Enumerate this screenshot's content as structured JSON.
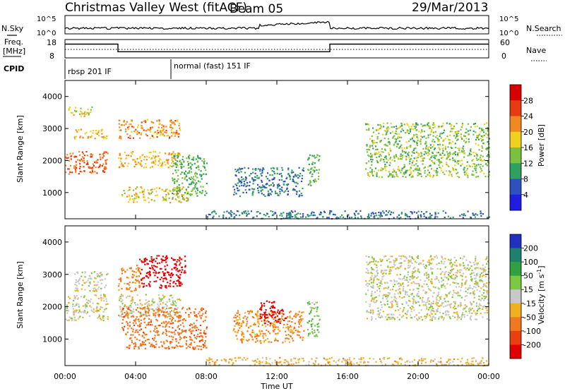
{
  "header": {
    "title": "Christmas Valley West (fitACF)",
    "beam": "Beam 05",
    "date": "29/Mar/2013"
  },
  "noise_panel": {
    "left_label": "N.Sky",
    "right_label": "N.Search",
    "left_ticks": [
      "10^5",
      "10^0"
    ],
    "right_ticks": [
      "10^5",
      "10^0"
    ]
  },
  "freq_panel": {
    "left_label_line1": "Freq.",
    "left_label_line2": "[MHz]",
    "right_label": "Nave",
    "left_ticks": [
      "18",
      "8"
    ],
    "right_ticks": [
      "60",
      "0"
    ],
    "freq_levels_mhz": [
      {
        "start_hour": 0,
        "end_hour": 3,
        "value": 15
      },
      {
        "start_hour": 3,
        "end_hour": 15,
        "value": 10
      },
      {
        "start_hour": 15,
        "end_hour": 24,
        "value": 15
      }
    ]
  },
  "cpid": {
    "label": "CPID",
    "modes": [
      {
        "start_hour": 0,
        "label": "rbsp 201 IF"
      },
      {
        "start_hour": 6,
        "label": "normal (fast) 151 IF"
      }
    ]
  },
  "x_axis": {
    "label": "Time UT",
    "range_hours": [
      0,
      24
    ],
    "ticks": [
      {
        "value": 0,
        "label": "00:00"
      },
      {
        "value": 4,
        "label": "04:00"
      },
      {
        "value": 8,
        "label": "08:00"
      },
      {
        "value": 12,
        "label": "12:00"
      },
      {
        "value": 16,
        "label": "16:00"
      },
      {
        "value": 20,
        "label": "20:00"
      },
      {
        "value": 24,
        "label": "00:00"
      }
    ]
  },
  "chart_data": [
    {
      "type": "heatmap",
      "name": "power",
      "ylabel": "Slant Range [km]",
      "ylim": [
        180,
        4500
      ],
      "yticks": [
        1000,
        2000,
        3000,
        4000
      ],
      "colorbar": {
        "label": "Power [dB]",
        "ticks": [
          "4",
          "8",
          "12",
          "16",
          "20",
          "24",
          "28"
        ],
        "colors": [
          "#1e1ee0",
          "#3050c0",
          "#30a060",
          "#7cc040",
          "#f0d020",
          "#f08a20",
          "#e83a10",
          "#d80000"
        ]
      },
      "regions": [
        {
          "t0": 0.0,
          "t1": 2.4,
          "r0": 1600,
          "r1": 2300,
          "value": 24
        },
        {
          "t0": 0.5,
          "t1": 2.4,
          "r0": 2700,
          "r1": 3000,
          "value": 20
        },
        {
          "t0": 0.0,
          "t1": 1.5,
          "r0": 3400,
          "r1": 3700,
          "value": 18
        },
        {
          "t0": 3.0,
          "t1": 6.5,
          "r0": 2700,
          "r1": 3300,
          "value": 22
        },
        {
          "t0": 3.0,
          "t1": 6.5,
          "r0": 1800,
          "r1": 2300,
          "value": 20
        },
        {
          "t0": 3.2,
          "t1": 7.0,
          "r0": 700,
          "r1": 1200,
          "value": 18
        },
        {
          "t0": 6.0,
          "t1": 8.0,
          "r0": 900,
          "r1": 2200,
          "value": 12
        },
        {
          "t0": 9.5,
          "t1": 13.5,
          "r0": 900,
          "r1": 1800,
          "value": 8
        },
        {
          "t0": 13.7,
          "t1": 14.4,
          "r0": 1200,
          "r1": 2200,
          "value": 12
        },
        {
          "t0": 17.0,
          "t1": 24.0,
          "r0": 1500,
          "r1": 3200,
          "value": 14
        },
        {
          "t0": 8.0,
          "t1": 24.0,
          "r0": 200,
          "r1": 450,
          "value": 8
        }
      ]
    },
    {
      "type": "heatmap",
      "name": "velocity",
      "ylabel": "Slant Range [km]",
      "ylim": [
        180,
        4500
      ],
      "yticks": [
        1000,
        2000,
        3000,
        4000
      ],
      "colorbar": {
        "label": "Velocity [m s",
        "label_sup": "-1",
        "label_end": "]",
        "ticks": [
          "200",
          "100",
          "50",
          "15",
          "-15",
          "-50",
          "-100",
          "-200"
        ],
        "colors": [
          "#2030c0",
          "#208070",
          "#30a040",
          "#7cc840",
          "#c8c8c8",
          "#f0b020",
          "#f07820",
          "#e84010",
          "#e00000"
        ]
      },
      "regions": [
        {
          "t0": 0.0,
          "t1": 2.4,
          "r0": 1600,
          "r1": 2400,
          "value": 0
        },
        {
          "t0": 0.5,
          "t1": 2.4,
          "r0": 2500,
          "r1": 3100,
          "value": 0
        },
        {
          "t0": 3.0,
          "t1": 4.2,
          "r0": 2500,
          "r1": 3300,
          "value": -60
        },
        {
          "t0": 4.2,
          "t1": 6.8,
          "r0": 2600,
          "r1": 3600,
          "value": -250
        },
        {
          "t0": 3.0,
          "t1": 6.5,
          "r0": 1700,
          "r1": 2400,
          "value": 0
        },
        {
          "t0": 3.2,
          "t1": 8.0,
          "r0": 700,
          "r1": 2000,
          "value": -80
        },
        {
          "t0": 9.5,
          "t1": 13.5,
          "r0": 900,
          "r1": 1900,
          "value": -60
        },
        {
          "t0": 11.0,
          "t1": 12.5,
          "r0": 1500,
          "r1": 2200,
          "value": -250
        },
        {
          "t0": 13.7,
          "t1": 14.4,
          "r0": 1100,
          "r1": 2200,
          "value": 40
        },
        {
          "t0": 17.0,
          "t1": 24.0,
          "r0": 1600,
          "r1": 3600,
          "value": 0
        },
        {
          "t0": 8.0,
          "t1": 24.0,
          "r0": 200,
          "r1": 450,
          "value": -30
        }
      ]
    }
  ]
}
